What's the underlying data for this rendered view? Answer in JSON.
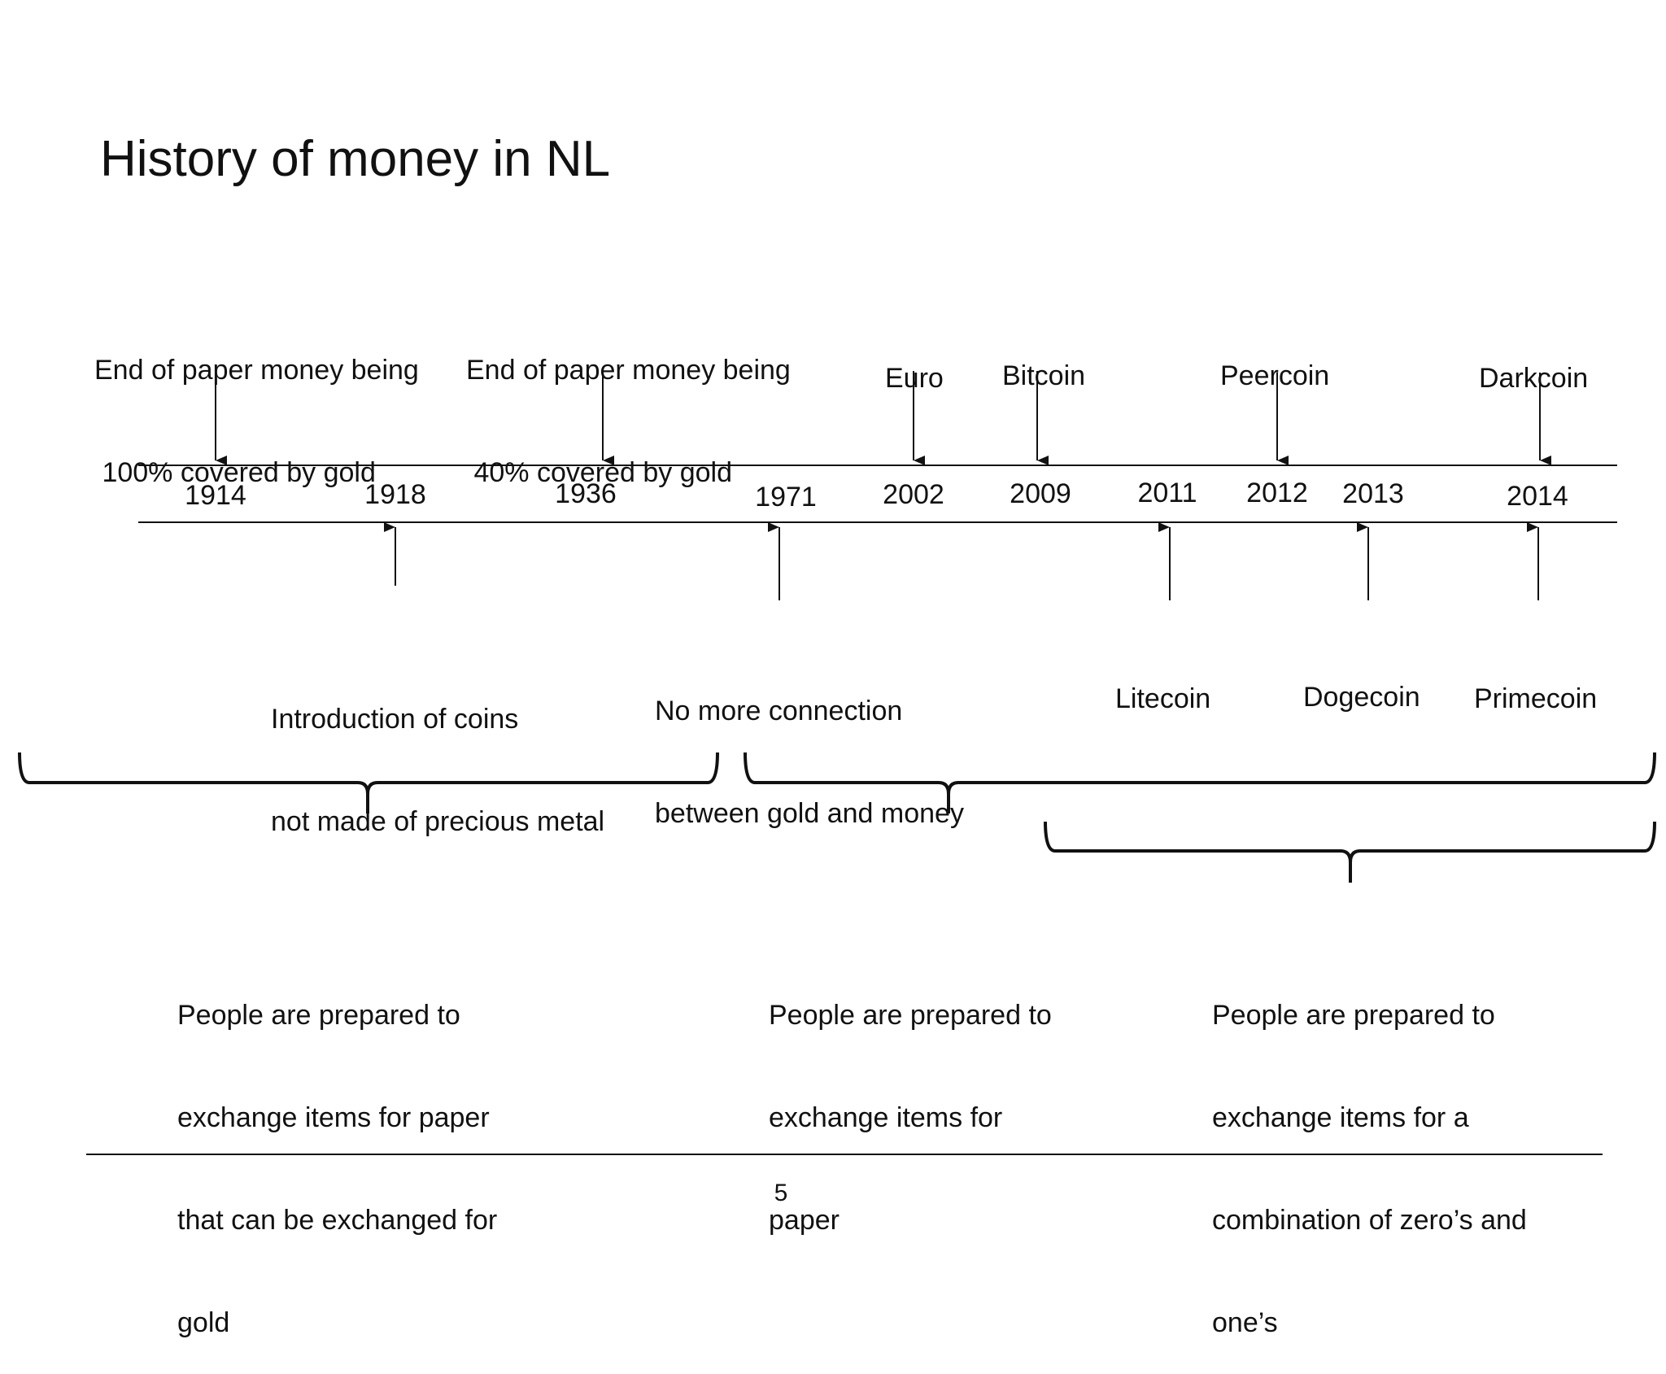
{
  "title": "History of money in NL",
  "years": [
    "1914",
    "1918",
    "1936",
    "1971",
    "2002",
    "2009",
    "2011",
    "2012",
    "2013",
    "2014"
  ],
  "events_above": [
    {
      "year": "1914",
      "lines": [
        "End of paper money being",
        " 100% covered by gold"
      ]
    },
    {
      "year": "1936",
      "lines": [
        "End of paper money being",
        " 40% covered by gold"
      ]
    },
    {
      "year": "2002",
      "lines": [
        "Euro"
      ]
    },
    {
      "year": "2009",
      "lines": [
        "Bitcoin"
      ]
    },
    {
      "year": "2012",
      "lines": [
        "Peercoin"
      ]
    },
    {
      "year": "2014",
      "lines": [
        "Darkcoin"
      ]
    }
  ],
  "events_below": [
    {
      "year": "1918",
      "lines": [
        "Introduction of coins",
        "not made of precious metal"
      ]
    },
    {
      "year": "1971",
      "lines": [
        "No more connection",
        "between gold and money"
      ]
    },
    {
      "year": "2011",
      "lines": [
        "Litecoin"
      ]
    },
    {
      "year": "2013",
      "lines": [
        "Dogecoin"
      ]
    },
    {
      "year": "2014",
      "lines": [
        "Primecoin"
      ]
    }
  ],
  "periods": [
    {
      "lines": [
        "People are prepared to",
        "exchange items for paper",
        "that can be exchanged for",
        "gold"
      ]
    },
    {
      "lines": [
        "People are prepared to",
        "exchange items for",
        "paper"
      ]
    },
    {
      "lines": [
        "People are prepared to",
        "exchange items for a",
        "combination of zero’s and",
        "one’s"
      ]
    }
  ],
  "page_number": "5"
}
